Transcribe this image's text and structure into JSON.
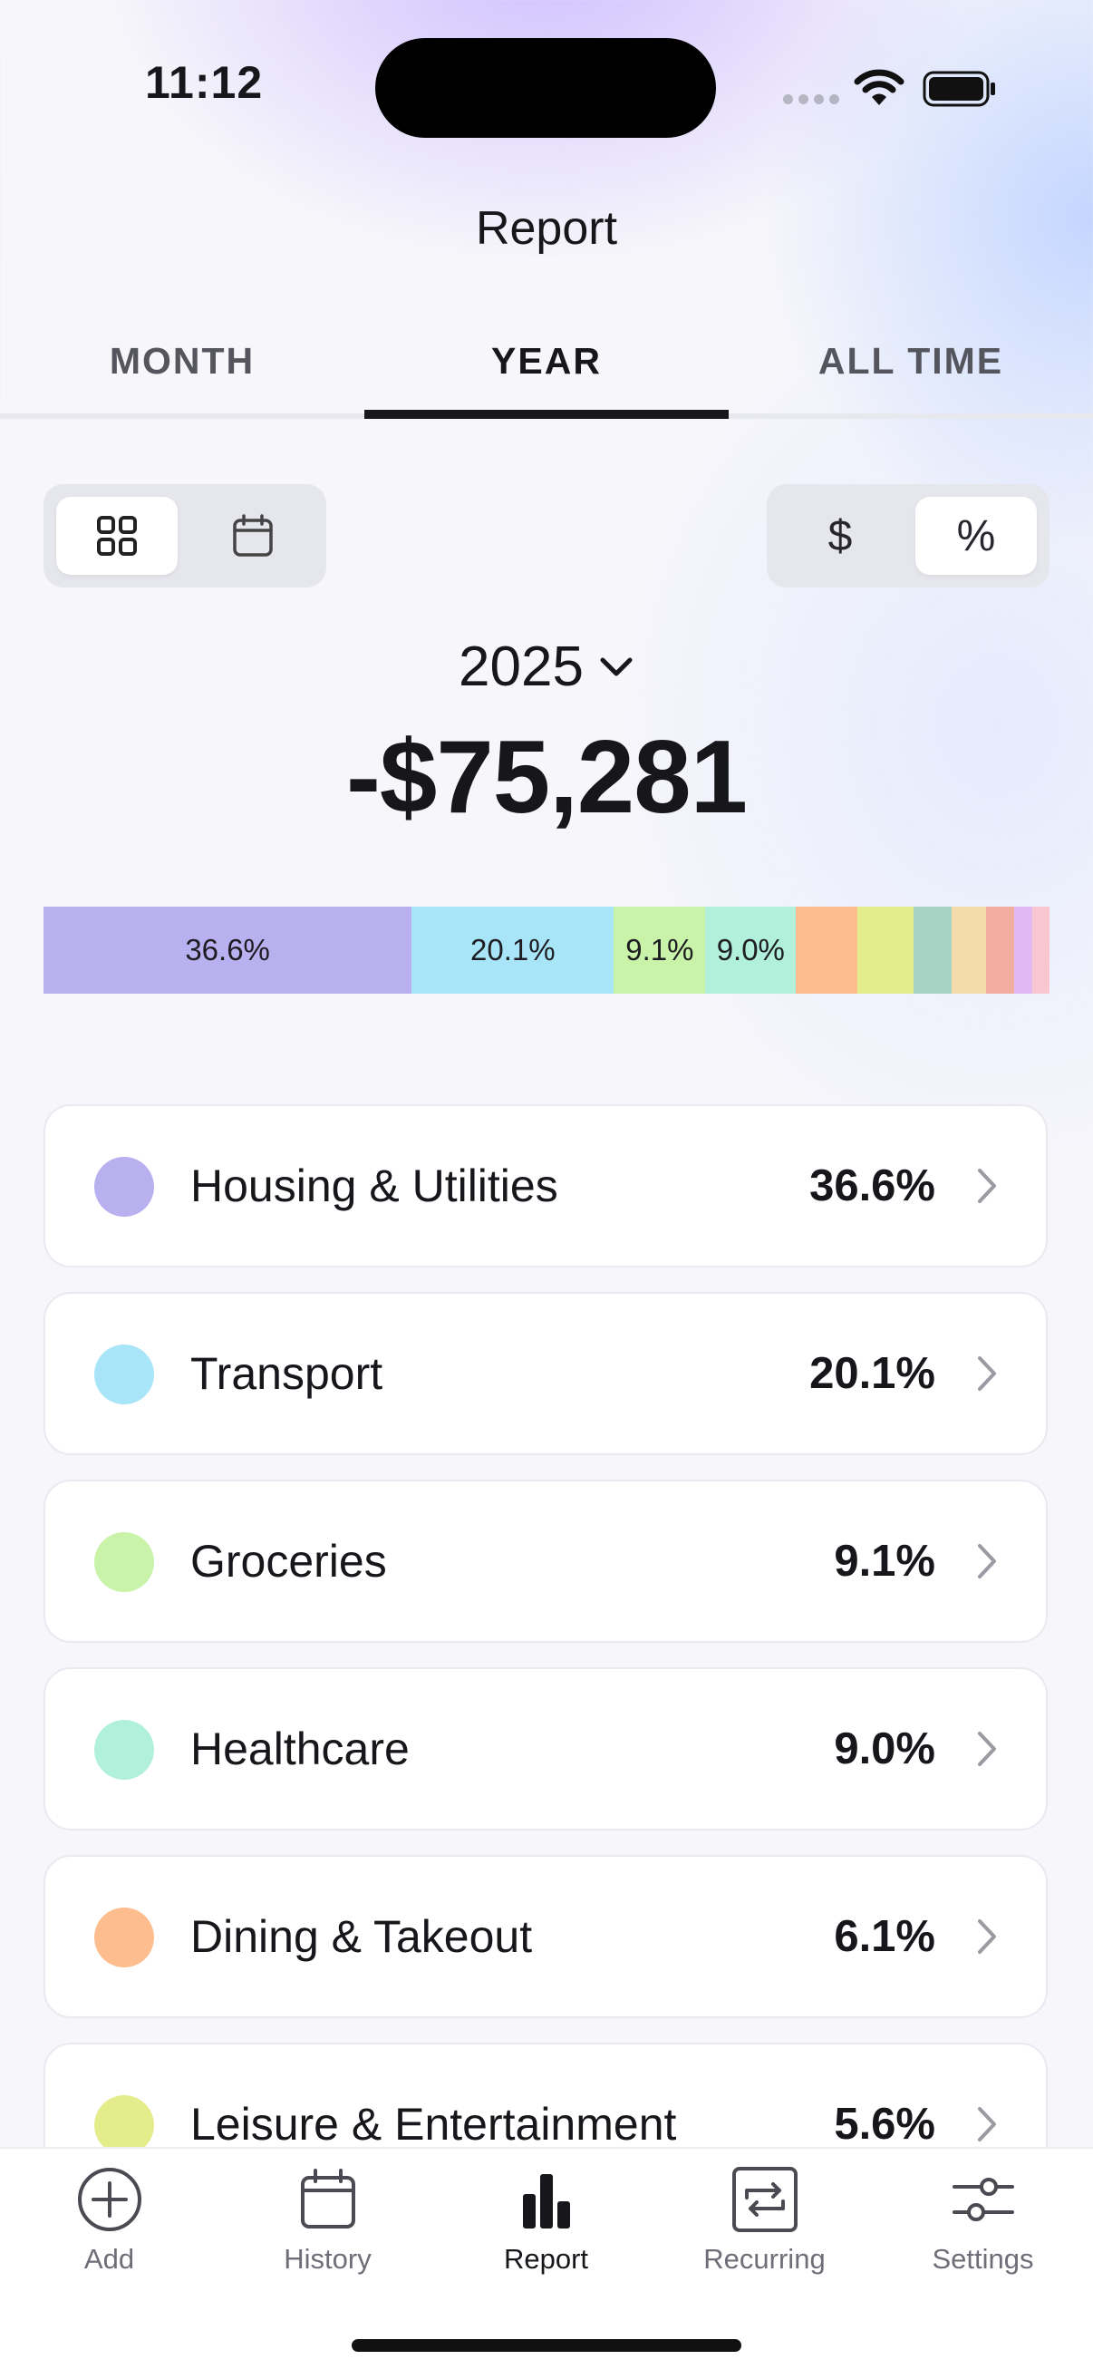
{
  "status_bar": {
    "time": "11:12"
  },
  "header": {
    "title": "Report"
  },
  "tabs": [
    {
      "label": "MONTH"
    },
    {
      "label": "YEAR"
    },
    {
      "label": "ALL TIME"
    }
  ],
  "active_tab": "YEAR",
  "view_toggle": {
    "options": [
      "grid-icon",
      "calendar-icon"
    ],
    "selected": "grid-icon"
  },
  "unit_toggle": {
    "options": [
      "$",
      "%"
    ],
    "selected": "%"
  },
  "period": {
    "year": "2025"
  },
  "total": "-$75,281",
  "breakdown_bar": {
    "segments": [
      {
        "percent": 36.6,
        "label": "36.6%",
        "color": "#b9b0f0"
      },
      {
        "percent": 20.1,
        "label": "20.1%",
        "color": "#a9e5f9"
      },
      {
        "percent": 9.1,
        "label": "9.1%",
        "color": "#c8f3a8"
      },
      {
        "percent": 9.0,
        "label": "9.0%",
        "color": "#b1f0db"
      },
      {
        "percent": 6.1,
        "label": "",
        "color": "#fdbd8e"
      },
      {
        "percent": 5.6,
        "label": "",
        "color": "#e5ec8c"
      },
      {
        "percent": 3.8,
        "label": "",
        "color": "#a7d3c4"
      },
      {
        "percent": 3.4,
        "label": "",
        "color": "#f3dcaa"
      },
      {
        "percent": 2.8,
        "label": "",
        "color": "#f2aea0"
      },
      {
        "percent": 1.8,
        "label": "",
        "color": "#e2b7f4"
      },
      {
        "percent": 1.7,
        "label": "",
        "color": "#f8c7cf"
      }
    ]
  },
  "categories": [
    {
      "name": "Housing & Utilities",
      "percent": "36.6%",
      "color": "#b9b0f0"
    },
    {
      "name": "Transport",
      "percent": "20.1%",
      "color": "#a9e5f9"
    },
    {
      "name": "Groceries",
      "percent": "9.1%",
      "color": "#c8f3a8"
    },
    {
      "name": "Healthcare",
      "percent": "9.0%",
      "color": "#b1f0db"
    },
    {
      "name": "Dining & Takeout",
      "percent": "6.1%",
      "color": "#fdbd8e"
    },
    {
      "name": "Leisure & Entertainment",
      "percent": "5.6%",
      "color": "#e5ec8c"
    }
  ],
  "nav": [
    {
      "label": "Add",
      "icon": "add-circle-icon"
    },
    {
      "label": "History",
      "icon": "calendar-icon"
    },
    {
      "label": "Report",
      "icon": "bar-chart-icon"
    },
    {
      "label": "Recurring",
      "icon": "repeat-icon"
    },
    {
      "label": "Settings",
      "icon": "sliders-icon"
    }
  ],
  "active_nav": "Report"
}
